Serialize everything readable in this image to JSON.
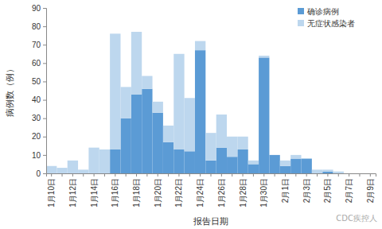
{
  "chart_data": {
    "type": "bar",
    "stacked": true,
    "x_label": "报告日期",
    "y_label": "病例数（例）",
    "annotations": [
      "CDC疾控人"
    ],
    "categories": [
      "1月10日",
      null,
      "1月12日",
      null,
      "1月14日",
      null,
      "1月16日",
      null,
      "1月18日",
      null,
      "1月20日",
      null,
      "1月22日",
      null,
      "1月24日",
      null,
      "1月26日",
      null,
      "1月28日",
      null,
      "1月30日",
      null,
      "2月1日",
      null,
      "2月3日",
      null,
      "2月5日",
      null,
      "2月7日",
      null,
      "2月9日"
    ],
    "series": [
      {
        "name": "确诊病例",
        "color": "#5b9bd5",
        "values": [
          0,
          0,
          0,
          0,
          0,
          0,
          13,
          30,
          43,
          46,
          33,
          17,
          13,
          12,
          67,
          7,
          14,
          9,
          13,
          5,
          63,
          10,
          4,
          8,
          8,
          0,
          1,
          0,
          0,
          0,
          0
        ]
      },
      {
        "name": "无症状感染者",
        "color": "#bdd7ee",
        "values": [
          4,
          3,
          7,
          2,
          14,
          13,
          63,
          17,
          34,
          7,
          6,
          9,
          52,
          29,
          5,
          15,
          18,
          11,
          7,
          2,
          1,
          0,
          3,
          2,
          0,
          2,
          1,
          1,
          0,
          0,
          0
        ]
      }
    ],
    "ylim": [
      0,
      90
    ],
    "yticks": [
      0,
      10,
      20,
      30,
      40,
      50,
      60,
      70,
      80,
      90
    ],
    "grid": false,
    "legend": "top-right"
  }
}
